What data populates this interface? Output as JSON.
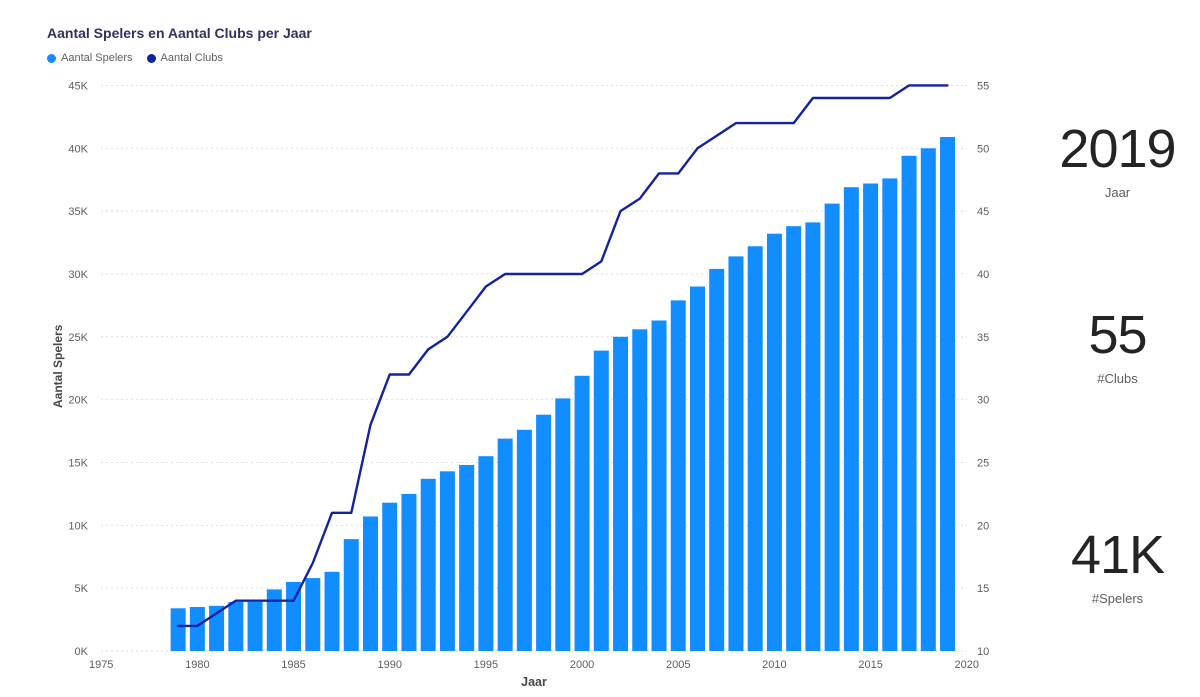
{
  "chart_data": {
    "type": "bar",
    "subtype": "combo-bar-line",
    "title": "Aantal Spelers en Aantal Clubs per Jaar",
    "xlabel": "Jaar",
    "ylabel_left": "Aantal Spelers",
    "ylabel_right": "",
    "grid": "horizontal-dotted",
    "legend_position": "top-left",
    "categories": [
      1979,
      1980,
      1981,
      1982,
      1983,
      1984,
      1985,
      1986,
      1987,
      1988,
      1989,
      1990,
      1991,
      1992,
      1993,
      1994,
      1995,
      1996,
      1997,
      1998,
      1999,
      2000,
      2001,
      2002,
      2003,
      2004,
      2005,
      2006,
      2007,
      2008,
      2009,
      2010,
      2011,
      2012,
      2013,
      2014,
      2015,
      2016,
      2017,
      2018,
      2019
    ],
    "series": [
      {
        "name": "Aantal Spelers",
        "type": "bar",
        "axis": "left",
        "color": "#118DFF",
        "values": [
          3400,
          3500,
          3600,
          3900,
          3900,
          4900,
          5500,
          5800,
          6300,
          8900,
          10700,
          11800,
          12500,
          13700,
          14300,
          14800,
          15500,
          16900,
          17600,
          18800,
          20100,
          21900,
          23900,
          25000,
          25600,
          26300,
          27900,
          29000,
          30400,
          31400,
          32200,
          33200,
          33800,
          34100,
          35600,
          36900,
          37200,
          37600,
          39400,
          40000,
          40900
        ]
      },
      {
        "name": "Aantal Clubs",
        "type": "line",
        "axis": "right",
        "color": "#12239E",
        "values": [
          12,
          12,
          13,
          14,
          14,
          14,
          14,
          17,
          21,
          21,
          28,
          32,
          32,
          34,
          35,
          37,
          39,
          40,
          40,
          40,
          40,
          40,
          41,
          45,
          46,
          48,
          48,
          50,
          51,
          52,
          52,
          52,
          52,
          54,
          54,
          54,
          54,
          54,
          55,
          55,
          55
        ]
      }
    ],
    "left_axis_range": [
      0,
      45000
    ],
    "right_axis_range": [
      10,
      55
    ],
    "left_ticks": [
      "0K",
      "5K",
      "10K",
      "15K",
      "20K",
      "25K",
      "30K",
      "35K",
      "40K",
      "45K"
    ],
    "right_ticks": [
      "10",
      "15",
      "20",
      "25",
      "30",
      "35",
      "40",
      "45",
      "50",
      "55"
    ],
    "x_ticks": [
      1975,
      1980,
      1985,
      1990,
      1995,
      2000,
      2005,
      2010,
      2015,
      2020
    ]
  },
  "kpis": [
    {
      "value": "2019",
      "label": "Jaar"
    },
    {
      "value": "55",
      "label": "#Clubs"
    },
    {
      "value": "41K",
      "label": "#Spelers"
    }
  ]
}
